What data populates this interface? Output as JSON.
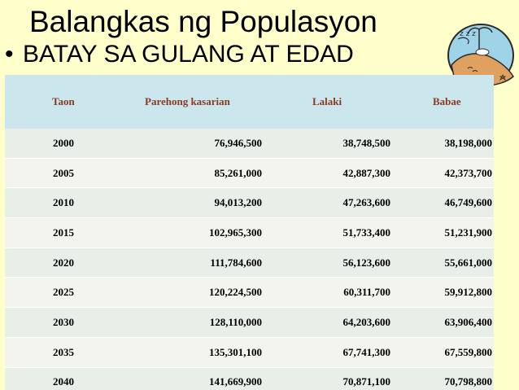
{
  "slide": {
    "title": "Balangkas ng Populasyon",
    "bullet": "BATAY SA GULANG AT EDAD",
    "bullet_symbol": "•"
  },
  "colors": {
    "background": "#ffffcc",
    "header_bg": "#cce6ee",
    "header_text": "#8a3a1e"
  },
  "table": {
    "headers": [
      "Taon",
      "Parehong kasarian",
      "Lalaki",
      "Babae"
    ],
    "rows": [
      [
        "2000",
        "76,946,500",
        "38,748,500",
        "38,198,000"
      ],
      [
        "2005",
        "85,261,000",
        "42,887,300",
        "42,373,700"
      ],
      [
        "2010",
        "94,013,200",
        "47,263,600",
        "46,749,600"
      ],
      [
        "2015",
        "102,965,300",
        "51,733,400",
        "51,231,900"
      ],
      [
        "2020",
        "111,784,600",
        "56,123,600",
        "55,661,000"
      ],
      [
        "2025",
        "120,224,500",
        "60,311,700",
        "59,912,800"
      ],
      [
        "2030",
        "128,110,000",
        "64,203,600",
        "63,906,400"
      ],
      [
        "2035",
        "135,301,100",
        "67,741,300",
        "67,559,800"
      ],
      [
        "2040",
        "141,669,900",
        "70,871,100",
        "70,798,800"
      ]
    ]
  },
  "logo_icon": "beach-island-icon"
}
